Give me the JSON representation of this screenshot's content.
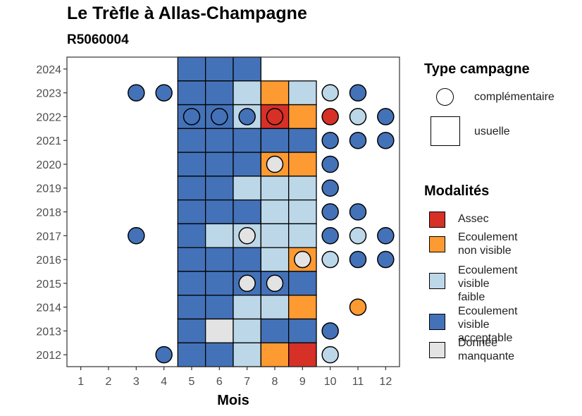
{
  "chart_data": {
    "type": "heatmap",
    "title": "Le Trèfle à Allas-Champagne",
    "subtitle": "R5060004",
    "xlabel": "Mois",
    "ylabel": "",
    "x_ticks": [
      1,
      2,
      3,
      4,
      5,
      6,
      7,
      8,
      9,
      10,
      11,
      12
    ],
    "y_ticks": [
      2012,
      2013,
      2014,
      2015,
      2016,
      2017,
      2018,
      2019,
      2020,
      2021,
      2022,
      2023,
      2024
    ],
    "xlim": [
      0.5,
      12.5
    ],
    "ylim": [
      2011.5,
      2024.5
    ],
    "grid": false,
    "legend_position": "right",
    "colors": {
      "Assec": "#d73027",
      "Ecoulement non visible": "#fd9a31",
      "Ecoulement visible faible": "#bcd7e8",
      "Ecoulement visible acceptable": "#4472b8",
      "Donnée manquante": "#e3e3e3"
    },
    "legend_type": {
      "title": "Type campagne",
      "entries": [
        {
          "label": "complémentaire",
          "shape": "circle"
        },
        {
          "label": "usuelle",
          "shape": "square"
        }
      ]
    },
    "legend_modalites": {
      "title": "Modalités",
      "entries": [
        {
          "label": "Assec",
          "lines": [
            "Assec"
          ]
        },
        {
          "label": "Ecoulement non visible",
          "lines": [
            "Ecoulement",
            "non visible"
          ]
        },
        {
          "label": "Ecoulement visible faible",
          "lines": [
            "Ecoulement",
            "visible",
            "faible"
          ]
        },
        {
          "label": "Ecoulement visible acceptable",
          "lines": [
            "Ecoulement",
            "visible",
            "acceptable"
          ]
        },
        {
          "label": "Donnée manquante",
          "lines": [
            "Donnée",
            "manquante"
          ]
        }
      ]
    },
    "usuelle": [
      {
        "year": 2024,
        "month": 5,
        "modalite": "Ecoulement visible acceptable"
      },
      {
        "year": 2024,
        "month": 6,
        "modalite": "Ecoulement visible acceptable"
      },
      {
        "year": 2024,
        "month": 7,
        "modalite": "Ecoulement visible acceptable"
      },
      {
        "year": 2023,
        "month": 5,
        "modalite": "Ecoulement visible acceptable"
      },
      {
        "year": 2023,
        "month": 6,
        "modalite": "Ecoulement visible acceptable"
      },
      {
        "year": 2023,
        "month": 7,
        "modalite": "Ecoulement visible faible"
      },
      {
        "year": 2023,
        "month": 8,
        "modalite": "Ecoulement non visible"
      },
      {
        "year": 2023,
        "month": 9,
        "modalite": "Ecoulement visible faible"
      },
      {
        "year": 2022,
        "month": 5,
        "modalite": "Ecoulement visible acceptable"
      },
      {
        "year": 2022,
        "month": 6,
        "modalite": "Ecoulement visible acceptable"
      },
      {
        "year": 2022,
        "month": 7,
        "modalite": "Ecoulement visible faible"
      },
      {
        "year": 2022,
        "month": 8,
        "modalite": "Assec"
      },
      {
        "year": 2022,
        "month": 9,
        "modalite": "Ecoulement non visible"
      },
      {
        "year": 2021,
        "month": 5,
        "modalite": "Ecoulement visible acceptable"
      },
      {
        "year": 2021,
        "month": 6,
        "modalite": "Ecoulement visible acceptable"
      },
      {
        "year": 2021,
        "month": 7,
        "modalite": "Ecoulement visible acceptable"
      },
      {
        "year": 2021,
        "month": 8,
        "modalite": "Ecoulement visible acceptable"
      },
      {
        "year": 2021,
        "month": 9,
        "modalite": "Ecoulement visible acceptable"
      },
      {
        "year": 2020,
        "month": 5,
        "modalite": "Ecoulement visible acceptable"
      },
      {
        "year": 2020,
        "month": 6,
        "modalite": "Ecoulement visible acceptable"
      },
      {
        "year": 2020,
        "month": 7,
        "modalite": "Ecoulement visible acceptable"
      },
      {
        "year": 2020,
        "month": 8,
        "modalite": "Ecoulement non visible"
      },
      {
        "year": 2020,
        "month": 9,
        "modalite": "Ecoulement non visible"
      },
      {
        "year": 2019,
        "month": 5,
        "modalite": "Ecoulement visible acceptable"
      },
      {
        "year": 2019,
        "month": 6,
        "modalite": "Ecoulement visible acceptable"
      },
      {
        "year": 2019,
        "month": 7,
        "modalite": "Ecoulement visible faible"
      },
      {
        "year": 2019,
        "month": 8,
        "modalite": "Ecoulement visible faible"
      },
      {
        "year": 2019,
        "month": 9,
        "modalite": "Ecoulement visible faible"
      },
      {
        "year": 2018,
        "month": 5,
        "modalite": "Ecoulement visible acceptable"
      },
      {
        "year": 2018,
        "month": 6,
        "modalite": "Ecoulement visible acceptable"
      },
      {
        "year": 2018,
        "month": 7,
        "modalite": "Ecoulement visible acceptable"
      },
      {
        "year": 2018,
        "month": 8,
        "modalite": "Ecoulement visible faible"
      },
      {
        "year": 2018,
        "month": 9,
        "modalite": "Ecoulement visible faible"
      },
      {
        "year": 2017,
        "month": 5,
        "modalite": "Ecoulement visible acceptable"
      },
      {
        "year": 2017,
        "month": 6,
        "modalite": "Ecoulement visible faible"
      },
      {
        "year": 2017,
        "month": 7,
        "modalite": "Ecoulement visible faible"
      },
      {
        "year": 2017,
        "month": 8,
        "modalite": "Ecoulement visible faible"
      },
      {
        "year": 2017,
        "month": 9,
        "modalite": "Ecoulement visible faible"
      },
      {
        "year": 2016,
        "month": 5,
        "modalite": "Ecoulement visible acceptable"
      },
      {
        "year": 2016,
        "month": 6,
        "modalite": "Ecoulement visible acceptable"
      },
      {
        "year": 2016,
        "month": 7,
        "modalite": "Ecoulement visible acceptable"
      },
      {
        "year": 2016,
        "month": 8,
        "modalite": "Ecoulement visible faible"
      },
      {
        "year": 2016,
        "month": 9,
        "modalite": "Ecoulement non visible"
      },
      {
        "year": 2015,
        "month": 5,
        "modalite": "Ecoulement visible acceptable"
      },
      {
        "year": 2015,
        "month": 6,
        "modalite": "Ecoulement visible acceptable"
      },
      {
        "year": 2015,
        "month": 7,
        "modalite": "Ecoulement visible acceptable"
      },
      {
        "year": 2015,
        "month": 8,
        "modalite": "Ecoulement visible acceptable"
      },
      {
        "year": 2015,
        "month": 9,
        "modalite": "Ecoulement visible acceptable"
      },
      {
        "year": 2014,
        "month": 5,
        "modalite": "Ecoulement visible acceptable"
      },
      {
        "year": 2014,
        "month": 6,
        "modalite": "Ecoulement visible acceptable"
      },
      {
        "year": 2014,
        "month": 7,
        "modalite": "Ecoulement visible faible"
      },
      {
        "year": 2014,
        "month": 8,
        "modalite": "Ecoulement visible faible"
      },
      {
        "year": 2014,
        "month": 9,
        "modalite": "Ecoulement non visible"
      },
      {
        "year": 2013,
        "month": 5,
        "modalite": "Ecoulement visible acceptable"
      },
      {
        "year": 2013,
        "month": 6,
        "modalite": "Donnée manquante"
      },
      {
        "year": 2013,
        "month": 7,
        "modalite": "Ecoulement visible faible"
      },
      {
        "year": 2013,
        "month": 8,
        "modalite": "Ecoulement visible acceptable"
      },
      {
        "year": 2013,
        "month": 9,
        "modalite": "Ecoulement visible acceptable"
      },
      {
        "year": 2012,
        "month": 5,
        "modalite": "Ecoulement visible acceptable"
      },
      {
        "year": 2012,
        "month": 6,
        "modalite": "Ecoulement visible acceptable"
      },
      {
        "year": 2012,
        "month": 7,
        "modalite": "Ecoulement visible faible"
      },
      {
        "year": 2012,
        "month": 8,
        "modalite": "Ecoulement non visible"
      },
      {
        "year": 2012,
        "month": 9,
        "modalite": "Assec"
      }
    ],
    "complementaire": [
      {
        "year": 2023,
        "month": 3,
        "modalite": "Ecoulement visible acceptable"
      },
      {
        "year": 2023,
        "month": 4,
        "modalite": "Ecoulement visible acceptable"
      },
      {
        "year": 2023,
        "month": 10,
        "modalite": "Ecoulement visible faible"
      },
      {
        "year": 2023,
        "month": 11,
        "modalite": "Ecoulement visible acceptable"
      },
      {
        "year": 2022,
        "month": 5,
        "modalite": "Ecoulement visible acceptable"
      },
      {
        "year": 2022,
        "month": 6,
        "modalite": "Ecoulement visible acceptable"
      },
      {
        "year": 2022,
        "month": 7,
        "modalite": "Ecoulement visible acceptable"
      },
      {
        "year": 2022,
        "month": 8,
        "modalite": "Assec"
      },
      {
        "year": 2022,
        "month": 10,
        "modalite": "Assec"
      },
      {
        "year": 2022,
        "month": 11,
        "modalite": "Ecoulement visible faible"
      },
      {
        "year": 2022,
        "month": 12,
        "modalite": "Ecoulement visible acceptable"
      },
      {
        "year": 2021,
        "month": 10,
        "modalite": "Ecoulement visible acceptable"
      },
      {
        "year": 2021,
        "month": 11,
        "modalite": "Ecoulement visible acceptable"
      },
      {
        "year": 2021,
        "month": 12,
        "modalite": "Ecoulement visible acceptable"
      },
      {
        "year": 2020,
        "month": 8,
        "modalite": "Donnée manquante"
      },
      {
        "year": 2020,
        "month": 10,
        "modalite": "Ecoulement visible acceptable"
      },
      {
        "year": 2019,
        "month": 10,
        "modalite": "Ecoulement visible acceptable"
      },
      {
        "year": 2018,
        "month": 10,
        "modalite": "Ecoulement visible acceptable"
      },
      {
        "year": 2018,
        "month": 11,
        "modalite": "Ecoulement visible acceptable"
      },
      {
        "year": 2017,
        "month": 3,
        "modalite": "Ecoulement visible acceptable"
      },
      {
        "year": 2017,
        "month": 7,
        "modalite": "Donnée manquante"
      },
      {
        "year": 2017,
        "month": 10,
        "modalite": "Ecoulement visible acceptable"
      },
      {
        "year": 2017,
        "month": 11,
        "modalite": "Ecoulement visible faible"
      },
      {
        "year": 2017,
        "month": 12,
        "modalite": "Ecoulement visible acceptable"
      },
      {
        "year": 2016,
        "month": 9,
        "modalite": "Donnée manquante"
      },
      {
        "year": 2016,
        "month": 10,
        "modalite": "Ecoulement visible faible"
      },
      {
        "year": 2016,
        "month": 11,
        "modalite": "Ecoulement visible acceptable"
      },
      {
        "year": 2016,
        "month": 12,
        "modalite": "Ecoulement visible acceptable"
      },
      {
        "year": 2015,
        "month": 7,
        "modalite": "Donnée manquante"
      },
      {
        "year": 2015,
        "month": 8,
        "modalite": "Donnée manquante"
      },
      {
        "year": 2014,
        "month": 11,
        "modalite": "Ecoulement non visible"
      },
      {
        "year": 2013,
        "month": 10,
        "modalite": "Ecoulement visible acceptable"
      },
      {
        "year": 2012,
        "month": 4,
        "modalite": "Ecoulement visible acceptable"
      },
      {
        "year": 2012,
        "month": 10,
        "modalite": "Ecoulement visible faible"
      }
    ]
  }
}
